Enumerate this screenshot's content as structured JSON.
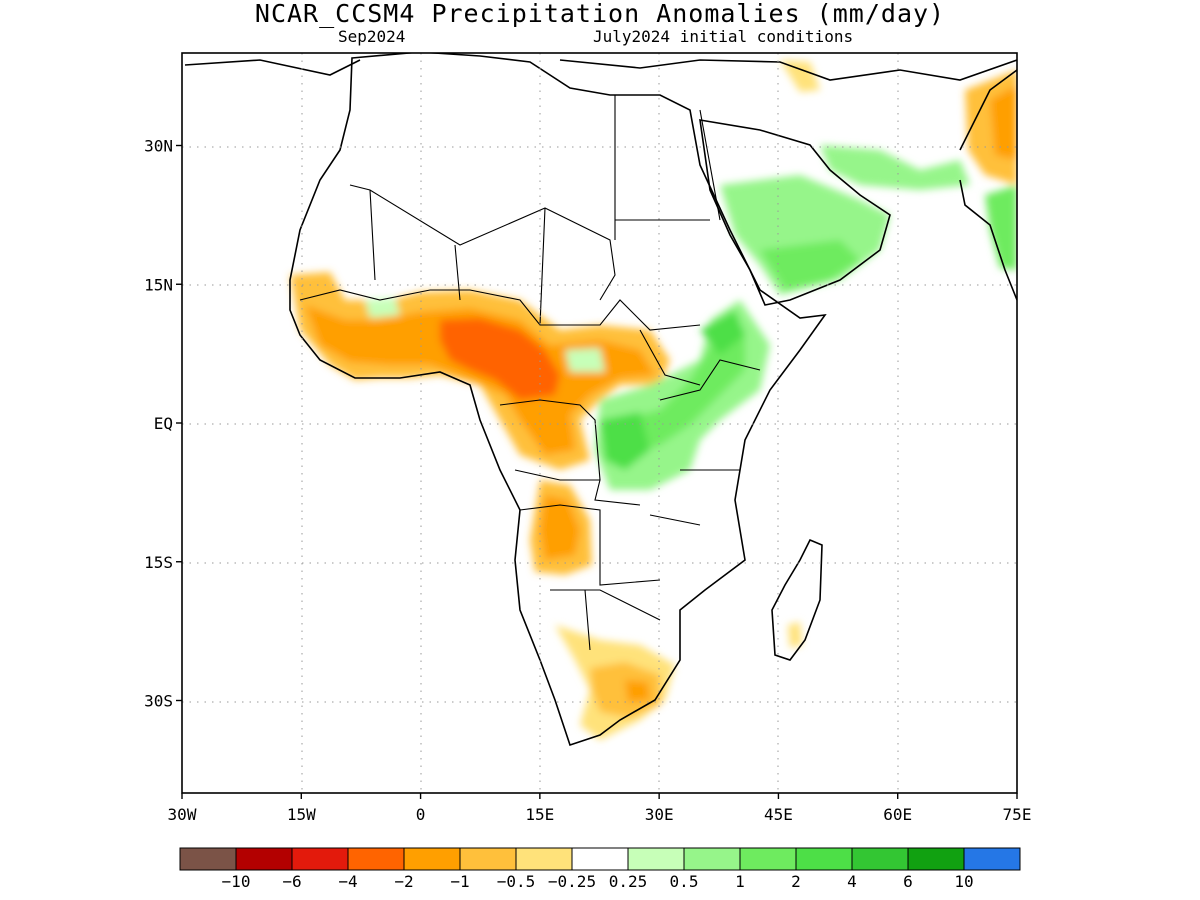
{
  "title": "NCAR_CCSM4 Precipitation Anomalies (mm/day)",
  "valid_month": "Sep2024",
  "initial_conditions": "July2024 initial conditions",
  "map": {
    "lon_range": [
      -30,
      75
    ],
    "lat_range": [
      -40,
      40
    ],
    "grid": "dotted",
    "x_ticks": [
      {
        "lon": -30,
        "label": "30W"
      },
      {
        "lon": -15,
        "label": "15W"
      },
      {
        "lon": 0,
        "label": "0"
      },
      {
        "lon": 15,
        "label": "15E"
      },
      {
        "lon": 30,
        "label": "30E"
      },
      {
        "lon": 45,
        "label": "45E"
      },
      {
        "lon": 60,
        "label": "60E"
      },
      {
        "lon": 75,
        "label": "75E"
      }
    ],
    "y_ticks": [
      {
        "lat": 30,
        "label": "30N"
      },
      {
        "lat": 15,
        "label": "15N"
      },
      {
        "lat": 0,
        "label": "EQ"
      },
      {
        "lat": -15,
        "label": "15S"
      },
      {
        "lat": -30,
        "label": "30S"
      }
    ]
  },
  "colorbar": {
    "colors": [
      "#7b5347",
      "#b30000",
      "#e31a0c",
      "#ff6400",
      "#ff9f00",
      "#ffc03b",
      "#ffe27a",
      "#ffffff",
      "#c7ffb8",
      "#96f58a",
      "#6eeb5f",
      "#4ddf47",
      "#33c633",
      "#11a111",
      "#2577e6"
    ],
    "labels": [
      "-10",
      "-6",
      "-4",
      "-2",
      "-1",
      "-0.5",
      "-0.25",
      "0.25",
      "0.5",
      "1",
      "2",
      "4",
      "6",
      "10"
    ]
  }
}
